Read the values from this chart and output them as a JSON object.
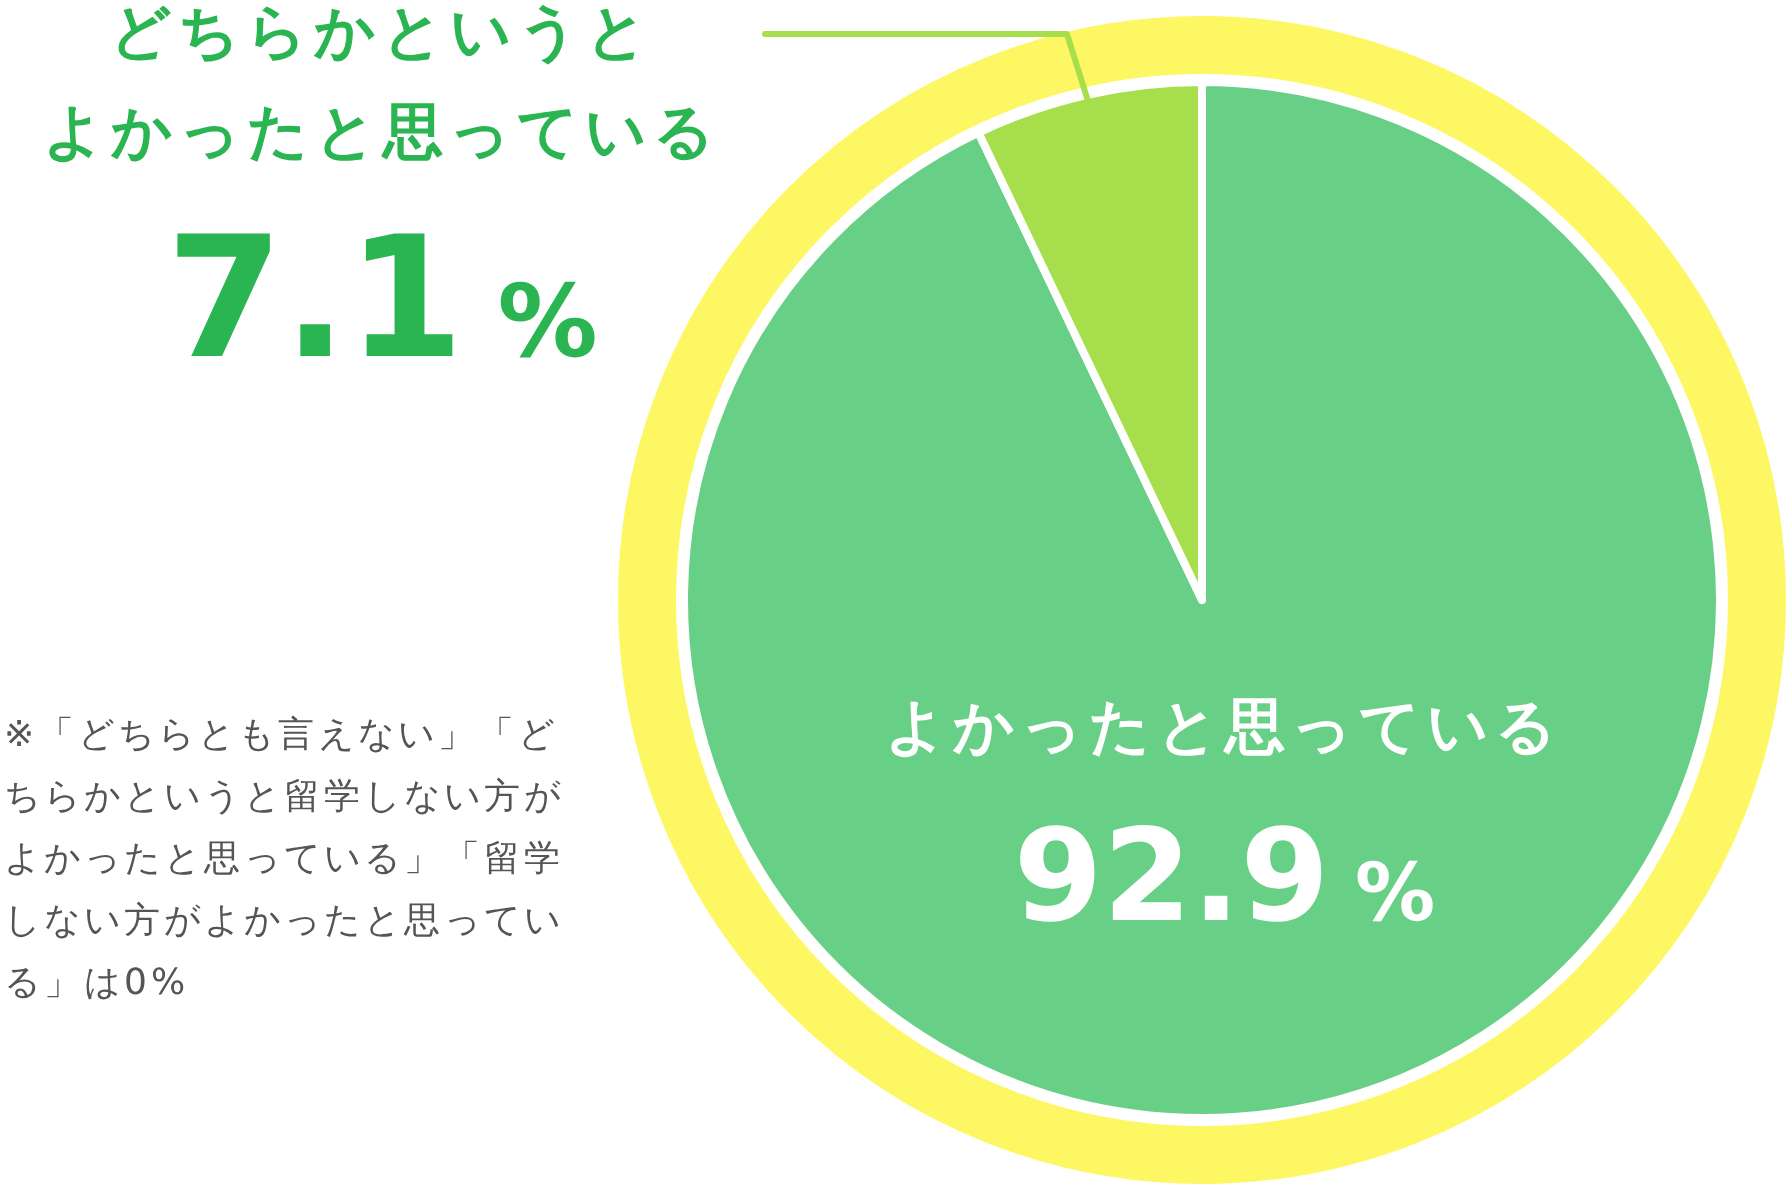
{
  "chart_data": {
    "type": "pie",
    "categories": [
      "よかったと思っている",
      "どちらかというとよかったと思っている"
    ],
    "values": [
      92.9,
      7.1
    ],
    "colors": [
      "#68cf86",
      "#a7de4c"
    ],
    "value_labels": [
      "92.9%",
      "7.1%"
    ],
    "annotations": [
      "※「どちらとも言えない」「どちらかというと留学しない方がよかったと思っている」「留学しない方がよかったと思っている」は0%"
    ]
  }
}
